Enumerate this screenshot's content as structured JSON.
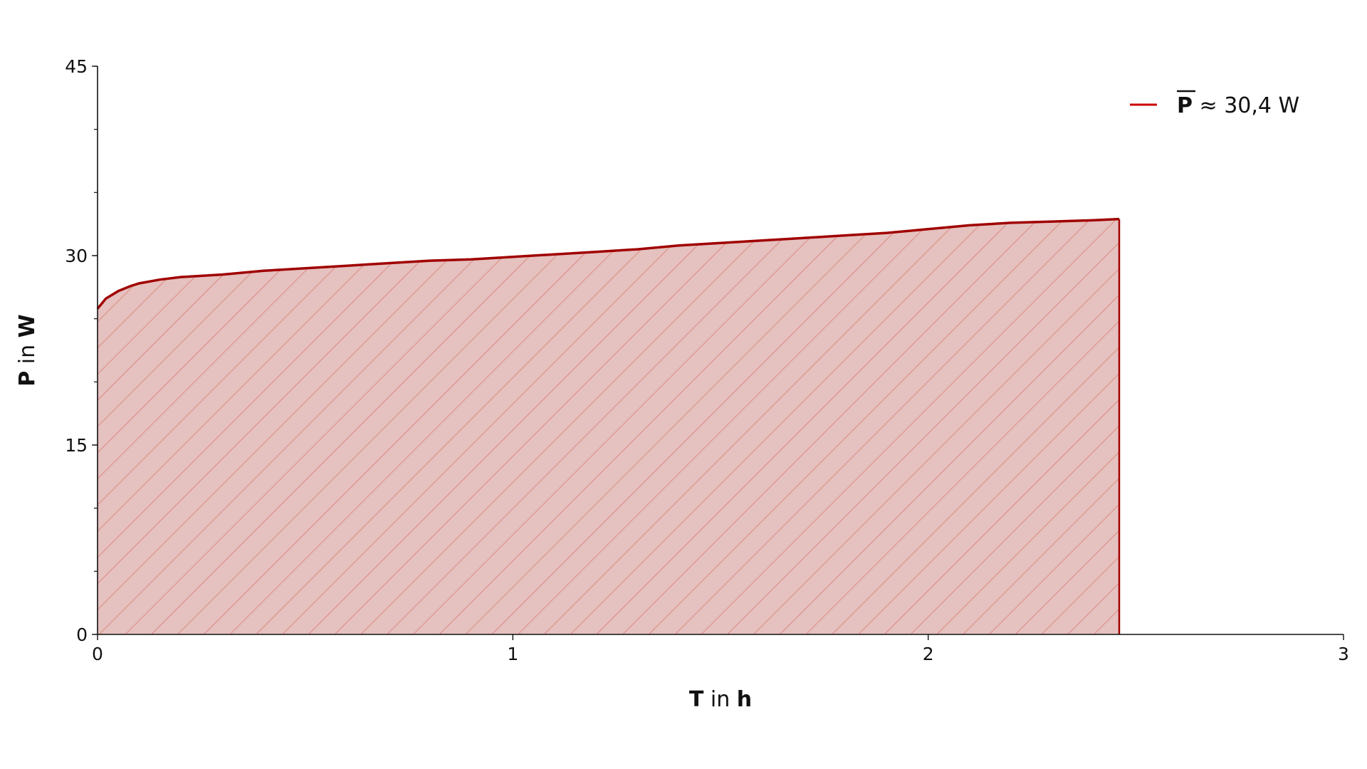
{
  "chart_data": {
    "type": "area",
    "xlabel": {
      "var": "T",
      "in": "in",
      "unit": "h"
    },
    "ylabel": {
      "var": "P",
      "in": "in",
      "unit": "W"
    },
    "xlim": [
      0,
      3
    ],
    "ylim": [
      0,
      45
    ],
    "xticks": [
      "0",
      "1",
      "2",
      "3"
    ],
    "yticks": [
      "0",
      "15",
      "30",
      "45"
    ],
    "y_minor_tick_step": 5,
    "grid": false,
    "legend": {
      "placement": "top-right",
      "symbol": "P",
      "text": "≈ 30,4 W"
    },
    "fill": "hatched",
    "colors": {
      "line": "#a00000",
      "fill": "#e5c1bf",
      "hatch": "#d9776b",
      "legend_line": "#cc0000"
    },
    "series": [
      {
        "x": [
          0,
          0.02,
          0.05,
          0.08,
          0.1,
          0.15,
          0.2,
          0.3,
          0.4,
          0.5,
          0.6,
          0.7,
          0.8,
          0.9,
          1.0,
          1.1,
          1.2,
          1.3,
          1.4,
          1.5,
          1.6,
          1.7,
          1.8,
          1.9,
          2.0,
          2.1,
          2.2,
          2.3,
          2.4,
          2.46
        ],
        "y": [
          25.8,
          26.6,
          27.2,
          27.6,
          27.8,
          28.1,
          28.3,
          28.5,
          28.8,
          29.0,
          29.2,
          29.4,
          29.6,
          29.7,
          29.9,
          30.1,
          30.3,
          30.5,
          30.8,
          31.0,
          31.2,
          31.4,
          31.6,
          31.8,
          32.1,
          32.4,
          32.6,
          32.7,
          32.8,
          32.9
        ]
      }
    ]
  }
}
